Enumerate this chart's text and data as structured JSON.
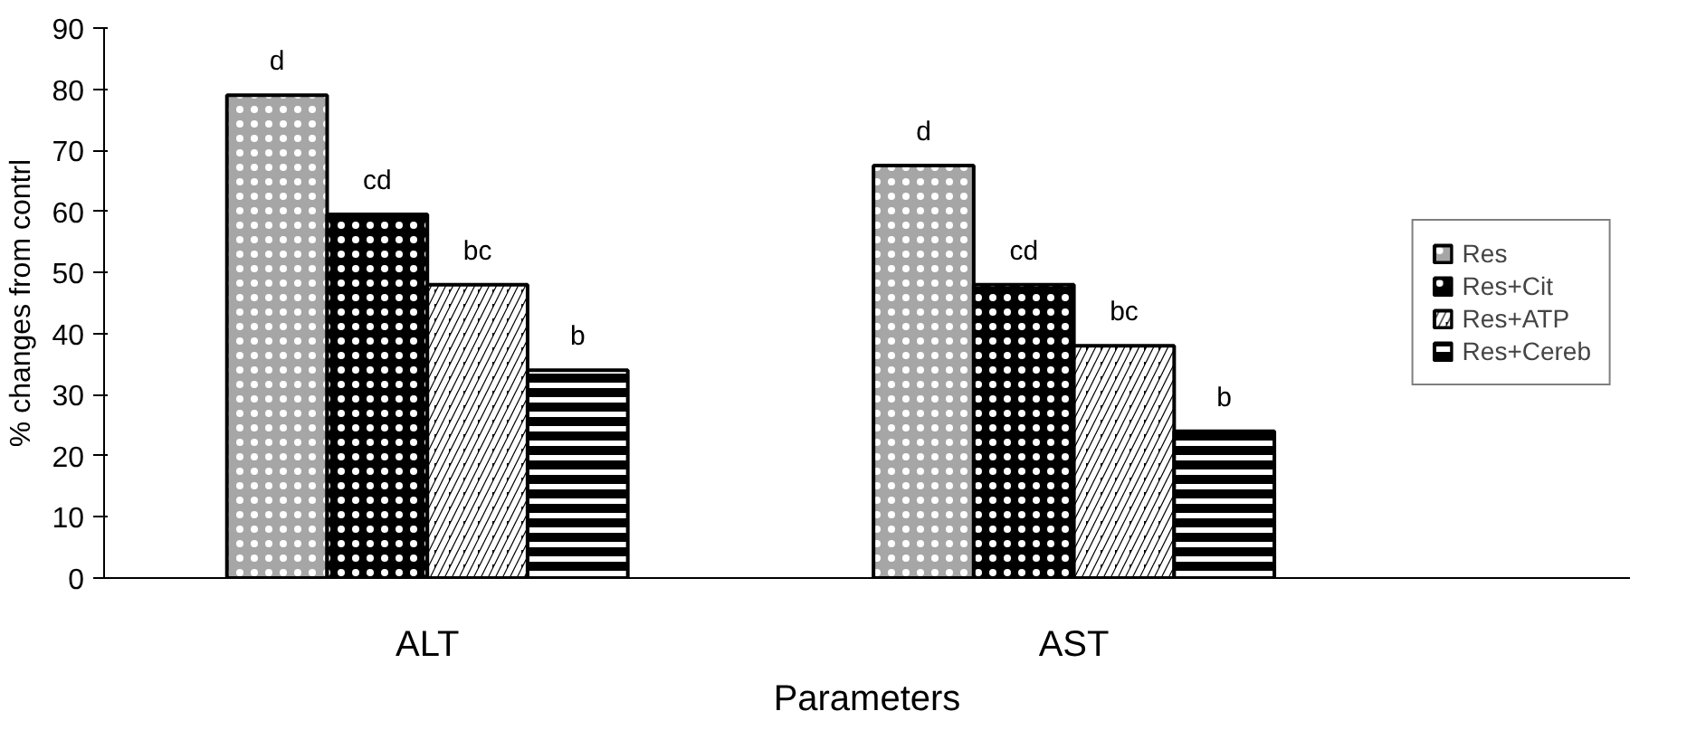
{
  "chart_data": {
    "type": "bar",
    "xlabel": "Parameters",
    "ylabel": "% changes from contrl",
    "categories": [
      "ALT",
      "AST"
    ],
    "series": [
      {
        "name": "Res",
        "color": "#a6a6a6",
        "values": [
          79,
          67.5
        ],
        "value_labels": [
          "d",
          "d"
        ]
      },
      {
        "name": "Res+Cit",
        "color": "#000000",
        "values": [
          59.5,
          48
        ],
        "value_labels": [
          "cd",
          "cd"
        ]
      },
      {
        "name": "Res+ATP",
        "color": "#000000",
        "values": [
          48,
          38
        ],
        "value_labels": [
          "bc",
          "bc"
        ]
      },
      {
        "name": "Res+Cereb",
        "color": "#000000",
        "values": [
          34,
          24
        ],
        "value_labels": [
          "b",
          "b"
        ]
      }
    ],
    "ylim": [
      0,
      90
    ],
    "yticks": [
      0,
      10,
      20,
      30,
      40,
      50,
      60,
      70,
      80,
      90
    ],
    "grid": false,
    "legend": "right"
  }
}
